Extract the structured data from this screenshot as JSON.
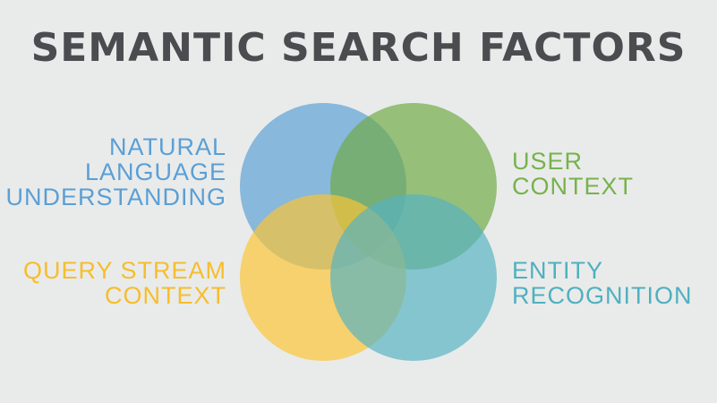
{
  "title": "SEMANTIC SEARCH FACTORS",
  "colors": {
    "background": "#e9ebea",
    "title": "#4a4c4f",
    "natural_language": "#5a9fd6",
    "user_context": "#77b24c",
    "query_stream": "#fcc434",
    "entity_recognition": "#5fb8c6"
  },
  "factors": {
    "natural_language": {
      "lines": [
        "NATURAL",
        "LANGUAGE",
        "UNDERSTANDING"
      ]
    },
    "user_context": {
      "lines": [
        "USER",
        "CONTEXT"
      ]
    },
    "query_stream": {
      "lines": [
        "QUERY STREAM",
        "CONTEXT"
      ]
    },
    "entity_recognition": {
      "lines": [
        "ENTITY",
        "RECOGNITION"
      ]
    }
  }
}
